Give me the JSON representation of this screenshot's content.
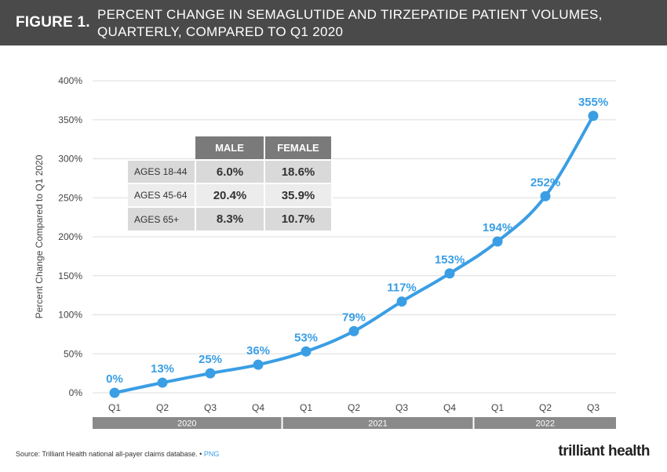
{
  "header": {
    "figure_label": "FIGURE 1.",
    "title_line1": "PERCENT CHANGE IN SEMAGLUTIDE AND TIRZEPATIDE PATIENT VOLUMES,",
    "title_line2": "QUARTERLY, COMPARED TO Q1 2020"
  },
  "chart_data": {
    "type": "line",
    "title": "Percent Change in Semaglutide and Tirzepatide Patient Volumes, Quarterly, Compared to Q1 2020",
    "xlabel": "",
    "ylabel": "Percent Change Compared to Q1 2020",
    "ylim": [
      0,
      400
    ],
    "yticks": [
      0,
      50,
      100,
      150,
      200,
      250,
      300,
      350,
      400
    ],
    "ytick_labels": [
      "0%",
      "50%",
      "100%",
      "150%",
      "200%",
      "250%",
      "300%",
      "350%",
      "400%"
    ],
    "grid": true,
    "categories": [
      "Q1",
      "Q2",
      "Q3",
      "Q4",
      "Q1",
      "Q2",
      "Q3",
      "Q4",
      "Q1",
      "Q2",
      "Q3"
    ],
    "years": [
      {
        "label": "2020",
        "quarters": 4
      },
      {
        "label": "2021",
        "quarters": 4
      },
      {
        "label": "2022",
        "quarters": 3
      }
    ],
    "series": [
      {
        "name": "Semaglutide and Tirzepatide patient volume change",
        "color": "#3a9ee4",
        "values": [
          0,
          13,
          25,
          36,
          53,
          79,
          117,
          153,
          194,
          252,
          355
        ],
        "labels": [
          "0%",
          "13%",
          "25%",
          "36%",
          "53%",
          "79%",
          "117%",
          "153%",
          "194%",
          "252%",
          "355%"
        ]
      }
    ]
  },
  "inset_table": {
    "columns": [
      "MALE",
      "FEMALE"
    ],
    "rows": [
      {
        "label": "AGES 18-44",
        "male": "6.0%",
        "female": "18.6%"
      },
      {
        "label": "AGES 45-64",
        "male": "20.4%",
        "female": "35.9%"
      },
      {
        "label": "AGES 65+",
        "male": "8.3%",
        "female": "10.7%"
      }
    ]
  },
  "footer": {
    "source": "Source: Trilliant Health national all-payer claims database.",
    "separator": "•",
    "png_link": "PNG",
    "brand": "trilliant health"
  },
  "colors": {
    "header_bg": "#4a4a4a",
    "line": "#3a9ee4",
    "year_band": "#8a8a8a",
    "grid": "#dddddd"
  }
}
